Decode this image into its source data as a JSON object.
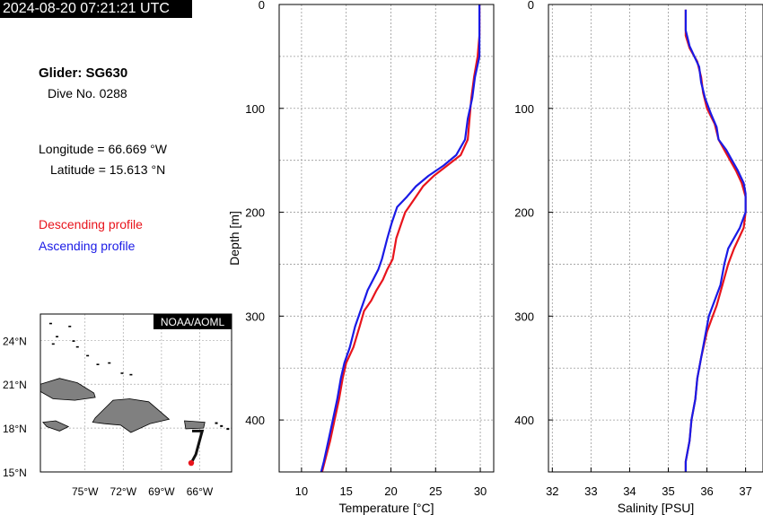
{
  "header": {
    "timestamp": "2024-08-20 07:21:21 UTC"
  },
  "info": {
    "glider": "Glider: SG630",
    "dive": "Dive No. 0288",
    "longitude": "Longitude = 66.669 °W",
    "latitude": "Latitude = 15.613 °N",
    "descending_label": "Descending profile",
    "ascending_label": "Ascending profile"
  },
  "colors": {
    "descending": "#e8141c",
    "ascending": "#1a1ae6",
    "land": "#808080",
    "track": "#111111",
    "glider_dot": "#e8141c"
  },
  "map": {
    "credit": "NOAA/AOML",
    "lat_ticks": [
      "24°N",
      "21°N",
      "18°N",
      "15°N"
    ],
    "lon_ticks": [
      "75°W",
      "72°W",
      "69°W",
      "66°W"
    ]
  },
  "chart_data": [
    {
      "type": "line",
      "xlabel": "Temperature [°C]",
      "ylabel": "Depth [m]",
      "xlim": [
        7.5,
        31.5
      ],
      "ylim": [
        450,
        0
      ],
      "xticks": [
        10,
        15,
        20,
        25,
        30
      ],
      "yticks": [
        0,
        100,
        200,
        300,
        400
      ],
      "grid": true,
      "series": [
        {
          "name": "Descending profile",
          "color": "#e8141c",
          "points": [
            [
              29.9,
              0
            ],
            [
              29.9,
              30
            ],
            [
              29.7,
              50
            ],
            [
              29.3,
              70
            ],
            [
              29.0,
              90
            ],
            [
              28.8,
              110
            ],
            [
              28.6,
              130
            ],
            [
              27.8,
              145
            ],
            [
              26.3,
              155
            ],
            [
              24.8,
              165
            ],
            [
              23.6,
              175
            ],
            [
              22.8,
              185
            ],
            [
              21.6,
              200
            ],
            [
              21.2,
              210
            ],
            [
              20.6,
              225
            ],
            [
              20.2,
              245
            ],
            [
              19.6,
              255
            ],
            [
              19.1,
              265
            ],
            [
              18.4,
              275
            ],
            [
              17.8,
              285
            ],
            [
              17.0,
              295
            ],
            [
              16.5,
              310
            ],
            [
              15.8,
              330
            ],
            [
              15.0,
              345
            ],
            [
              14.6,
              360
            ],
            [
              14.2,
              380
            ],
            [
              13.7,
              400
            ],
            [
              13.2,
              420
            ],
            [
              12.6,
              440
            ],
            [
              12.3,
              450
            ]
          ]
        },
        {
          "name": "Ascending profile",
          "color": "#1a1ae6",
          "points": [
            [
              29.9,
              0
            ],
            [
              29.9,
              30
            ],
            [
              29.9,
              50
            ],
            [
              29.4,
              70
            ],
            [
              29.1,
              90
            ],
            [
              28.6,
              110
            ],
            [
              28.3,
              130
            ],
            [
              27.3,
              145
            ],
            [
              25.9,
              155
            ],
            [
              24.2,
              165
            ],
            [
              22.8,
              175
            ],
            [
              21.8,
              185
            ],
            [
              20.7,
              195
            ],
            [
              20.1,
              210
            ],
            [
              19.6,
              225
            ],
            [
              19.0,
              245
            ],
            [
              18.6,
              255
            ],
            [
              18.0,
              265
            ],
            [
              17.4,
              275
            ],
            [
              17.0,
              285
            ],
            [
              16.6,
              295
            ],
            [
              16.0,
              310
            ],
            [
              15.4,
              330
            ],
            [
              14.8,
              345
            ],
            [
              14.4,
              360
            ],
            [
              14.0,
              380
            ],
            [
              13.5,
              400
            ],
            [
              13.0,
              420
            ],
            [
              12.5,
              440
            ],
            [
              12.2,
              450
            ]
          ]
        }
      ]
    },
    {
      "type": "line",
      "xlabel": "Salinity [PSU]",
      "ylabel": "",
      "xlim": [
        31.9,
        37.45
      ],
      "ylim": [
        450,
        0
      ],
      "xticks": [
        32,
        33,
        34,
        35,
        36,
        37
      ],
      "yticks": [
        0,
        100,
        200,
        300,
        400
      ],
      "grid": true,
      "series": [
        {
          "name": "Descending profile",
          "color": "#e8141c",
          "points": [
            [
              35.45,
              5
            ],
            [
              35.45,
              30
            ],
            [
              35.55,
              42
            ],
            [
              35.75,
              55
            ],
            [
              35.85,
              70
            ],
            [
              35.9,
              85
            ],
            [
              36.0,
              100
            ],
            [
              36.2,
              115
            ],
            [
              36.3,
              130
            ],
            [
              36.45,
              140
            ],
            [
              36.6,
              150
            ],
            [
              36.75,
              160
            ],
            [
              36.9,
              172
            ],
            [
              37.0,
              185
            ],
            [
              37.0,
              200
            ],
            [
              36.95,
              215
            ],
            [
              36.7,
              235
            ],
            [
              36.55,
              250
            ],
            [
              36.4,
              270
            ],
            [
              36.25,
              290
            ],
            [
              36.15,
              300
            ],
            [
              36.0,
              315
            ],
            [
              35.85,
              340
            ],
            [
              35.75,
              360
            ],
            [
              35.7,
              380
            ],
            [
              35.6,
              400
            ],
            [
              35.55,
              420
            ],
            [
              35.45,
              440
            ],
            [
              35.45,
              450
            ]
          ]
        },
        {
          "name": "Ascending profile",
          "color": "#1a1ae6",
          "points": [
            [
              35.45,
              5
            ],
            [
              35.45,
              25
            ],
            [
              35.55,
              40
            ],
            [
              35.8,
              60
            ],
            [
              35.85,
              75
            ],
            [
              35.95,
              90
            ],
            [
              36.1,
              105
            ],
            [
              36.25,
              118
            ],
            [
              36.3,
              130
            ],
            [
              36.5,
              140
            ],
            [
              36.65,
              150
            ],
            [
              36.8,
              160
            ],
            [
              36.95,
              172
            ],
            [
              37.0,
              182
            ],
            [
              37.0,
              200
            ],
            [
              36.85,
              215
            ],
            [
              36.55,
              235
            ],
            [
              36.45,
              250
            ],
            [
              36.35,
              270
            ],
            [
              36.15,
              290
            ],
            [
              36.05,
              300
            ],
            [
              35.95,
              320
            ],
            [
              35.85,
              340
            ],
            [
              35.75,
              360
            ],
            [
              35.7,
              380
            ],
            [
              35.6,
              400
            ],
            [
              35.55,
              420
            ],
            [
              35.45,
              440
            ],
            [
              35.45,
              450
            ]
          ]
        }
      ]
    }
  ]
}
